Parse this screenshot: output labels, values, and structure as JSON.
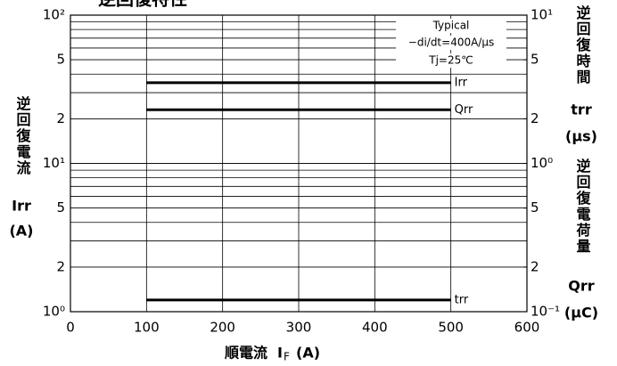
{
  "chart_data": {
    "type": "line",
    "title": "逆回復特性",
    "x_label": {
      "text": "順電流",
      "symbol": "I",
      "subscript": "F",
      "unit": "(A)"
    },
    "y_label": {
      "text": "逆回復電流",
      "symbol": "Irr",
      "unit": "(A)"
    },
    "y2_labels": [
      {
        "text": "逆回復時間",
        "symbol": "trr",
        "unit": "(μs)"
      },
      {
        "text": "逆回復電荷量",
        "symbol": "Qrr",
        "unit": "(μC)"
      }
    ],
    "annotations": [
      "Typical",
      "−di/dt=400A/μs",
      "Tj=25℃"
    ],
    "xlim": [
      0,
      600
    ],
    "xticks": [
      0,
      100,
      200,
      300,
      400,
      500,
      600
    ],
    "ylim": [
      1,
      100
    ],
    "log_y": true,
    "yticks": [
      {
        "value": 1,
        "label": "10⁰"
      },
      2,
      5,
      {
        "value": 10,
        "label": "10¹"
      },
      {
        "value": 20,
        "label": "2"
      },
      {
        "value": 50,
        "label": "5"
      },
      {
        "value": 100,
        "label": "10²"
      }
    ],
    "y2lim": [
      0.1,
      10
    ],
    "y2ticks": [
      {
        "value": 0.1,
        "label": "10⁻¹"
      },
      {
        "value": 0.2,
        "label": "2"
      },
      {
        "value": 0.5,
        "label": "5"
      },
      {
        "value": 1,
        "label": "10⁰"
      },
      2,
      5,
      {
        "value": 10,
        "label": "10¹"
      }
    ],
    "grid": true,
    "minor_grid": true,
    "series": [
      {
        "name": "Irr",
        "color": "#000000",
        "x": [
          100,
          500
        ],
        "values": [
          35,
          35
        ]
      },
      {
        "name": "Qrr",
        "color": "#000000",
        "axis": "y2",
        "x": [
          100,
          500
        ],
        "values": [
          2.3,
          2.3
        ]
      },
      {
        "name": "trr",
        "color": "#000000",
        "axis": "y2",
        "x": [
          100,
          500
        ],
        "values": [
          0.12,
          0.12
        ]
      }
    ]
  }
}
